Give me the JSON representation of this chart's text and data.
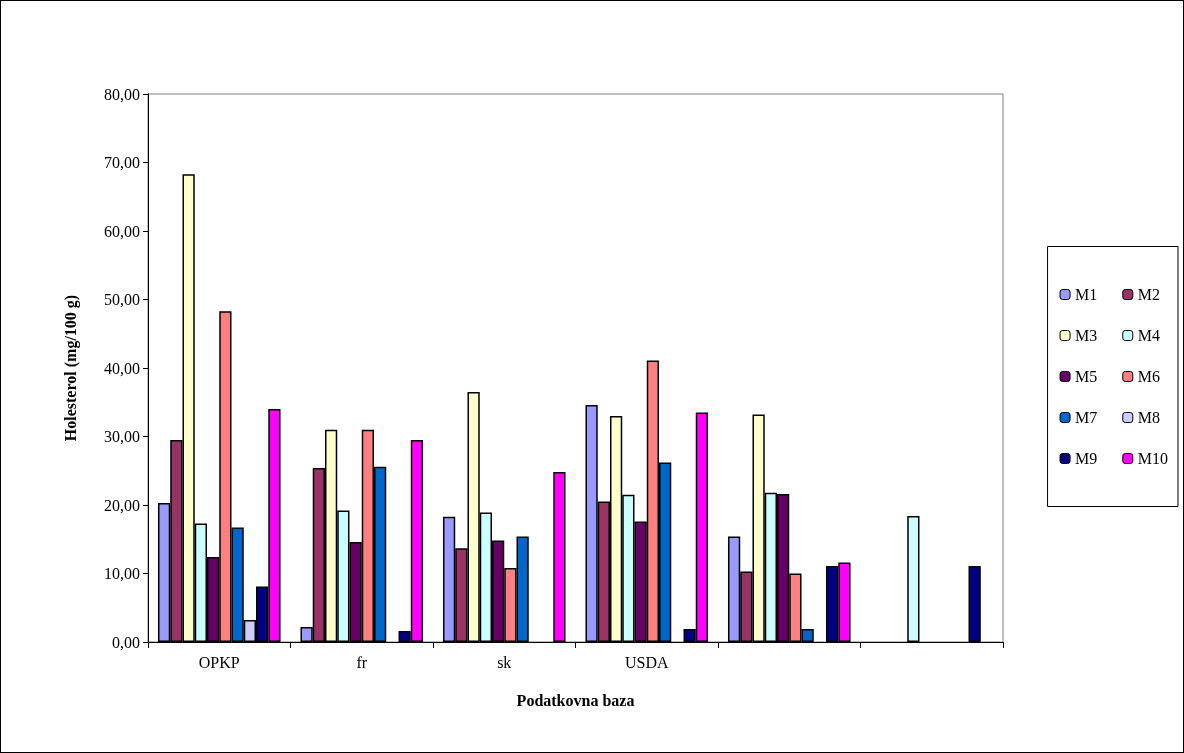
{
  "chart_data": {
    "type": "bar",
    "xlabel": "Podatkovna baza",
    "ylabel": "Holesterol (mg/100 g)",
    "categories": [
      "OPKP",
      "fr",
      "sk",
      "USDA",
      null,
      null
    ],
    "ylim": [
      0,
      80
    ],
    "yticks": [
      {
        "value": 0,
        "label": "0,00"
      },
      {
        "value": 10,
        "label": "10,00"
      },
      {
        "value": 20,
        "label": "20,00"
      },
      {
        "value": 30,
        "label": "30,00"
      },
      {
        "value": 40,
        "label": "40,00"
      },
      {
        "value": 50,
        "label": "50,00"
      },
      {
        "value": 60,
        "label": "60,00"
      },
      {
        "value": 70,
        "label": "70,00"
      },
      {
        "value": 80,
        "label": "80,00"
      }
    ],
    "grid": false,
    "legend": "right",
    "series": [
      {
        "name": "M1",
        "color": "#9999ff",
        "values": [
          20.3,
          2.2,
          18.3,
          34.6,
          15.4,
          null
        ]
      },
      {
        "name": "M2",
        "color": "#993366",
        "values": [
          29.5,
          25.4,
          13.7,
          20.5,
          10.3,
          null
        ]
      },
      {
        "name": "M3",
        "color": "#ffffcc",
        "values": [
          68.3,
          31.0,
          36.5,
          33.0,
          33.2,
          null
        ]
      },
      {
        "name": "M4",
        "color": "#ccffff",
        "values": [
          17.3,
          19.2,
          18.9,
          21.5,
          21.8,
          18.4
        ]
      },
      {
        "name": "M5",
        "color": "#660066",
        "values": [
          12.4,
          14.6,
          14.8,
          17.6,
          21.6,
          null
        ]
      },
      {
        "name": "M6",
        "color": "#ff8080",
        "values": [
          48.3,
          31.0,
          10.8,
          41.1,
          10.0,
          null
        ]
      },
      {
        "name": "M7",
        "color": "#0066cc",
        "values": [
          16.7,
          25.6,
          15.4,
          26.2,
          1.9,
          null
        ]
      },
      {
        "name": "M8",
        "color": "#ccccff",
        "values": [
          3.2,
          null,
          null,
          null,
          null,
          null
        ]
      },
      {
        "name": "M9",
        "color": "#000080",
        "values": [
          8.1,
          1.6,
          null,
          1.9,
          11.1,
          11.1
        ]
      },
      {
        "name": "M10",
        "color": "#ff00ff",
        "values": [
          34.0,
          29.5,
          24.8,
          33.5,
          11.6,
          null
        ]
      }
    ]
  }
}
